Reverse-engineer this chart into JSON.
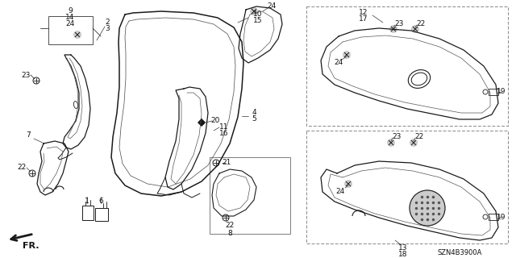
{
  "bg_color": "#ffffff",
  "diagram_code": "SZN4B3900A",
  "line_color": "#1a1a1a",
  "label_color": "#111111",
  "box_color": "#888888",
  "lw": 0.9
}
